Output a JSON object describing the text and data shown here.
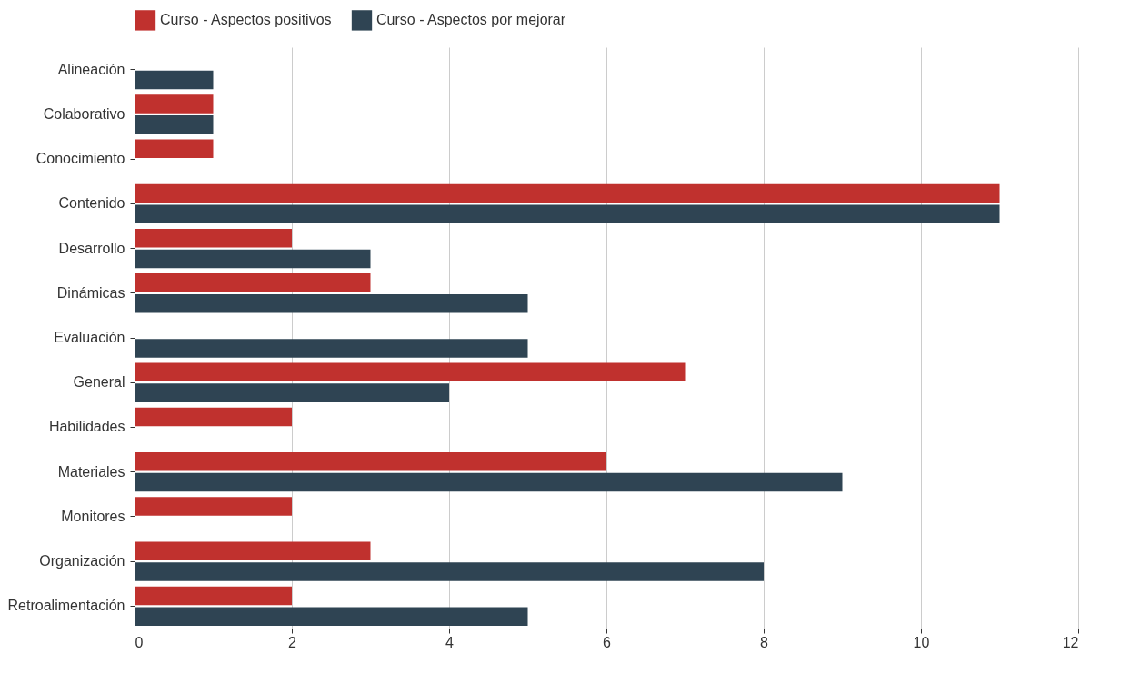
{
  "chart_data": {
    "type": "bar",
    "orientation": "horizontal",
    "categories": [
      "Alineación",
      "Colaborativo",
      "Conocimiento",
      "Contenido",
      "Desarrollo",
      "Dinámicas",
      "Evaluación",
      "General",
      "Habilidades",
      "Materiales",
      "Monitores",
      "Organización",
      "Retroalimentación"
    ],
    "series": [
      {
        "name": "Curso - Aspectos positivos",
        "color": "#c0312e",
        "values": [
          null,
          1,
          1,
          11,
          2,
          3,
          null,
          7,
          2,
          6,
          2,
          3,
          2
        ]
      },
      {
        "name": "Curso - Aspectos por mejorar",
        "color": "#2f4453",
        "values": [
          1,
          1,
          null,
          11,
          3,
          5,
          5,
          4,
          null,
          9,
          null,
          8,
          5
        ]
      }
    ],
    "xlim": [
      0,
      12
    ],
    "xticks": [
      0,
      2,
      4,
      6,
      8,
      10,
      12
    ],
    "grid": "x",
    "legend": "top"
  }
}
